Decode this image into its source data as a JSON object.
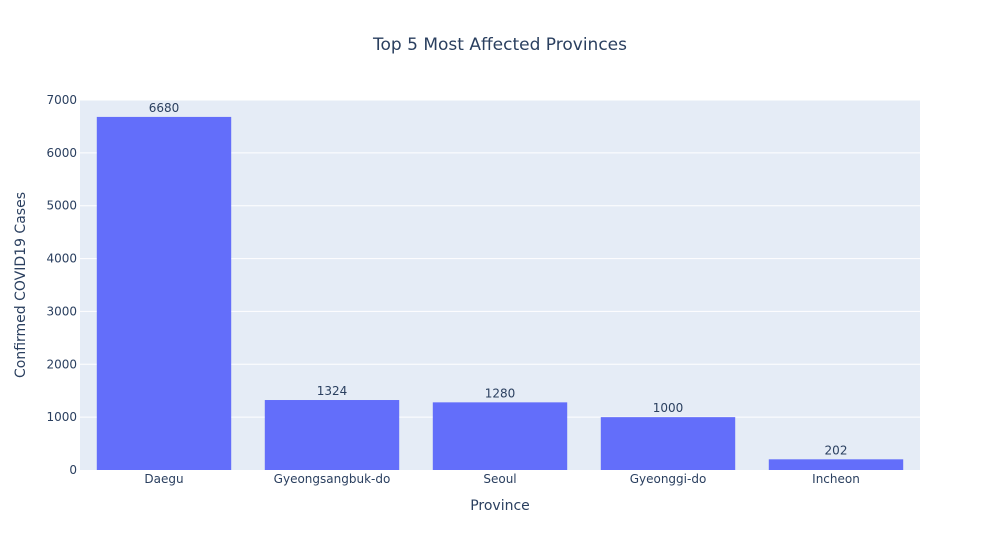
{
  "chart_data": {
    "type": "bar",
    "title": "Top 5 Most Affected Provinces",
    "xlabel": "Province",
    "ylabel": "Confirmed COVID19 Cases",
    "categories": [
      "Daegu",
      "Gyeongsangbuk-do",
      "Seoul",
      "Gyeonggi-do",
      "Incheon"
    ],
    "values": [
      6680,
      1324,
      1280,
      1000,
      202
    ],
    "data_labels": [
      "6680",
      "1324",
      "1280",
      "1000",
      "202"
    ],
    "ylim": [
      0,
      7000
    ],
    "yticks": [
      0,
      1000,
      2000,
      3000,
      4000,
      5000,
      6000,
      7000
    ],
    "ytick_labels": [
      "0",
      "1000",
      "2000",
      "3000",
      "4000",
      "5000",
      "6000",
      "7000"
    ],
    "grid": true,
    "colors": {
      "bar": "#636efa",
      "plot_bg": "#e5ecf6",
      "grid": "#ffffff",
      "text": "#2a3f5f",
      "title": "#2a3f5f"
    }
  }
}
